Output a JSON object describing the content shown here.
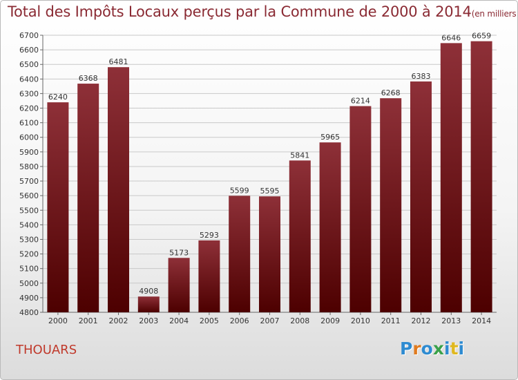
{
  "title": {
    "main": "Total des Impôts Locaux perçus par la Commune de 2000 à 2014",
    "sub": "(en milliers d'€)"
  },
  "commune": "THOUARS",
  "logo": "Proxiti",
  "logo_colors": [
    "#2e8bd1",
    "#e07b1f",
    "#2e8bd1",
    "#3aa14a",
    "#2e8bd1",
    "#e0b81f",
    "#2e8bd1"
  ],
  "colors": {
    "bar_top": "#8e3038",
    "bar_bottom": "#4d0000",
    "title": "#8a2a33",
    "commune": "#c0392b"
  },
  "chart_data": {
    "type": "bar",
    "categories": [
      "2000",
      "2001",
      "2002",
      "2003",
      "2004",
      "2005",
      "2006",
      "2007",
      "2008",
      "2009",
      "2010",
      "2011",
      "2012",
      "2013",
      "2014"
    ],
    "values": [
      6240,
      6368,
      6481,
      4908,
      5173,
      5293,
      5599,
      5595,
      5841,
      5965,
      6214,
      6268,
      6383,
      6646,
      6659
    ],
    "ylim": [
      4800,
      6700
    ],
    "yticks": [
      4800,
      4900,
      5000,
      5100,
      5200,
      5300,
      5400,
      5500,
      5600,
      5700,
      5800,
      5900,
      6000,
      6100,
      6200,
      6300,
      6400,
      6500,
      6600,
      6700
    ],
    "grid": true,
    "title": "Total des Impôts Locaux perçus par la Commune de 2000 à 2014",
    "xlabel": "",
    "ylabel": ""
  }
}
